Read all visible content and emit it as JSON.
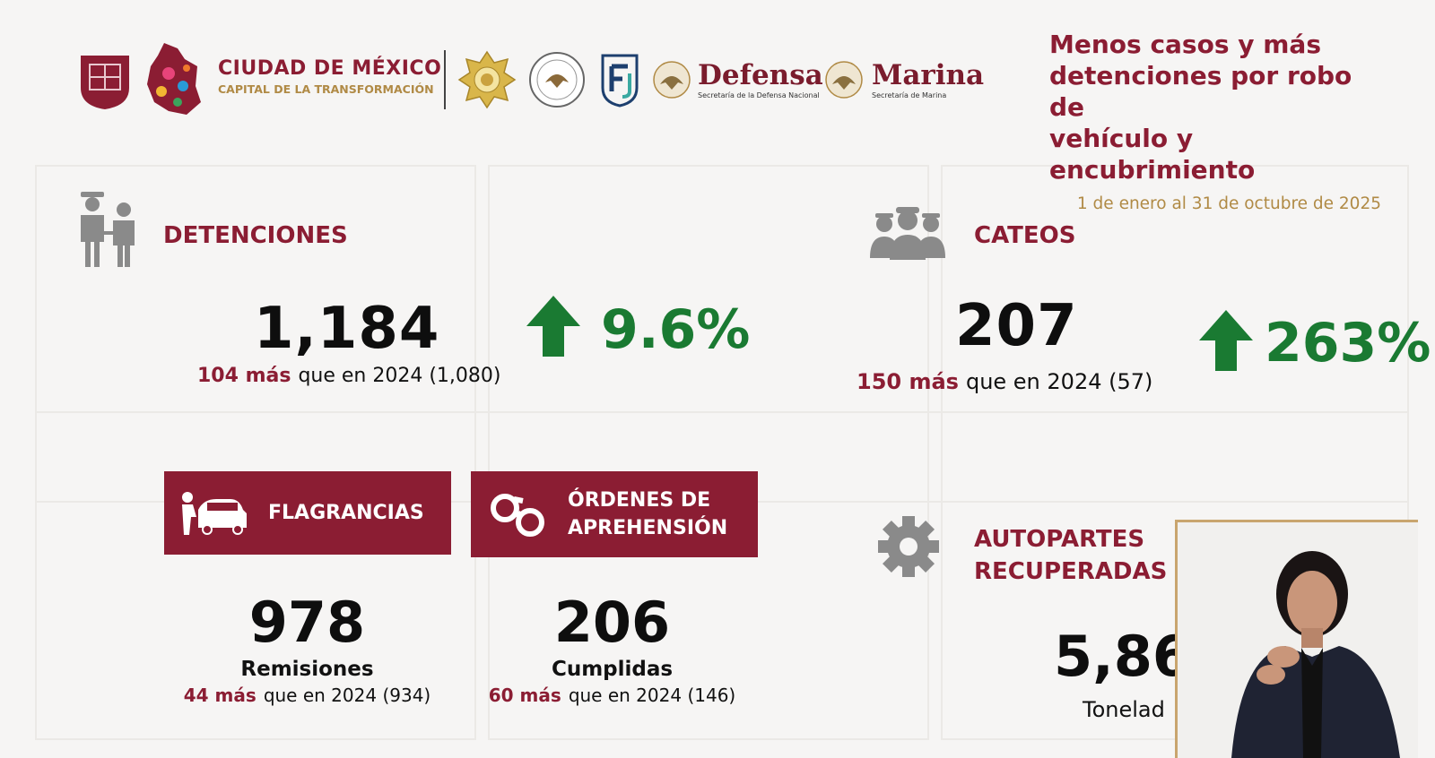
{
  "colors": {
    "guinda": "#8b1d33",
    "gold": "#b08a45",
    "green": "#1a7a32",
    "icon_gray": "#8a8a8a"
  },
  "header": {
    "cdmx_title": "CIUDAD DE MÉXICO",
    "cdmx_subtitle": "CAPITAL DE LA TRANSFORMACIÓN",
    "defensa_name": "Defensa",
    "defensa_sub": "Secretaría de la Defensa Nacional",
    "marina_name": "Marina",
    "marina_sub": "Secretaría de Marina",
    "title_lines": [
      "Menos casos y más",
      "detenciones por robo de",
      "vehículo y encubrimiento"
    ],
    "date_range": "1 de enero al 31 de octubre de 2025"
  },
  "detenciones": {
    "icon": "arrest-icon",
    "label": "DETENCIONES",
    "value": "1,184",
    "more": "104 más",
    "compare": "que en 2024 (1,080)",
    "change": "9.6%",
    "trend_icon": "arrow-up-icon"
  },
  "cateos": {
    "icon": "police-group-icon",
    "label": "CATEOS",
    "value": "207",
    "more": "150 más",
    "compare": "que en 2024 (57)",
    "change": "263%",
    "trend_icon": "arrow-up-icon"
  },
  "flagrancias": {
    "icon": "car-inspection-icon",
    "label": "FLAGRANCIAS",
    "value": "978",
    "caption": "Remisiones",
    "more": "44 más",
    "compare": "que en 2024 (934)"
  },
  "ordenes": {
    "icon": "handcuffs-icon",
    "label_line1": "ÓRDENES DE",
    "label_line2": "APREHENSIÓN",
    "value": "206",
    "caption": "Cumplidas",
    "more": "60 más",
    "compare": "que en 2024 (146)"
  },
  "autopartes": {
    "icon": "gear-icon",
    "label_line1": "AUTOPARTES",
    "label_line2": "RECUPERADAS",
    "value_partial": "5,86",
    "caption_partial": "Tonelad"
  }
}
